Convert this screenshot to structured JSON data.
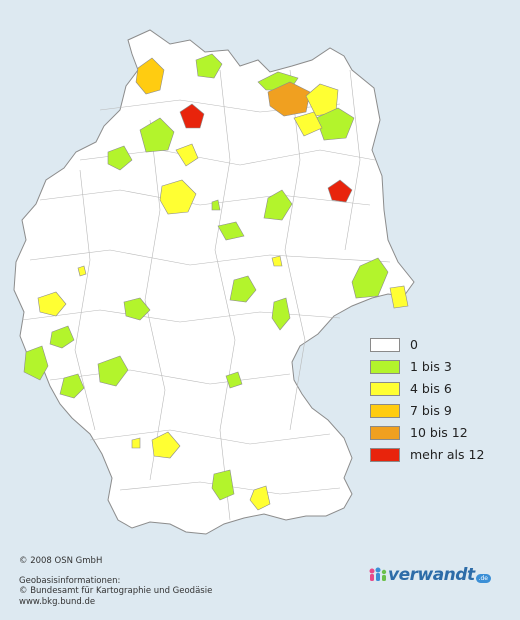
{
  "legend": {
    "items": [
      {
        "label": "0",
        "color": "#ffffff"
      },
      {
        "label": "1 bis 3",
        "color": "#b3f42c"
      },
      {
        "label": "4 bis 6",
        "color": "#ffff33"
      },
      {
        "label": "7 bis 9",
        "color": "#ffcc11"
      },
      {
        "label": "10 bis 12",
        "color": "#f0a020"
      },
      {
        "label": "mehr als 12",
        "color": "#e8240c"
      }
    ]
  },
  "credits": {
    "copyright": "© 2008 OSN GmbH",
    "geo_title": "Geobasisinformationen:",
    "geo_source": "© Bundesamt für Kartographie und Geodäsie",
    "geo_url": "www.bkg.bund.de"
  },
  "brand": {
    "name": "verwandt",
    "tld": ".de"
  },
  "map": {
    "background": "#dde9f1",
    "land_fill": "#ffffff",
    "border_color": "#9a9a9a",
    "districts": [
      {
        "id": "kiel-area",
        "level": "1 bis 3"
      },
      {
        "id": "hamburg-west",
        "level": "7 bis 9"
      },
      {
        "id": "hamburg",
        "level": "mehr als 12"
      },
      {
        "id": "rostock-area",
        "level": "1 bis 3"
      },
      {
        "id": "guestrow",
        "level": "10 bis 12"
      },
      {
        "id": "neubrandenburg",
        "level": "4 bis 6"
      },
      {
        "id": "uckermark",
        "level": "1 bis 3"
      },
      {
        "id": "berlin",
        "level": "mehr als 12"
      },
      {
        "id": "bremen-area",
        "level": "1 bis 3"
      },
      {
        "id": "hannover",
        "level": "4 bis 6"
      },
      {
        "id": "magdeburg",
        "level": "1 bis 3"
      },
      {
        "id": "dresden",
        "level": "1 bis 3"
      },
      {
        "id": "duesseldorf",
        "level": "4 bis 6"
      },
      {
        "id": "saarland",
        "level": "1 bis 3"
      },
      {
        "id": "stuttgart",
        "level": "4 bis 6"
      },
      {
        "id": "muenchen",
        "level": "4 bis 6"
      }
    ]
  }
}
